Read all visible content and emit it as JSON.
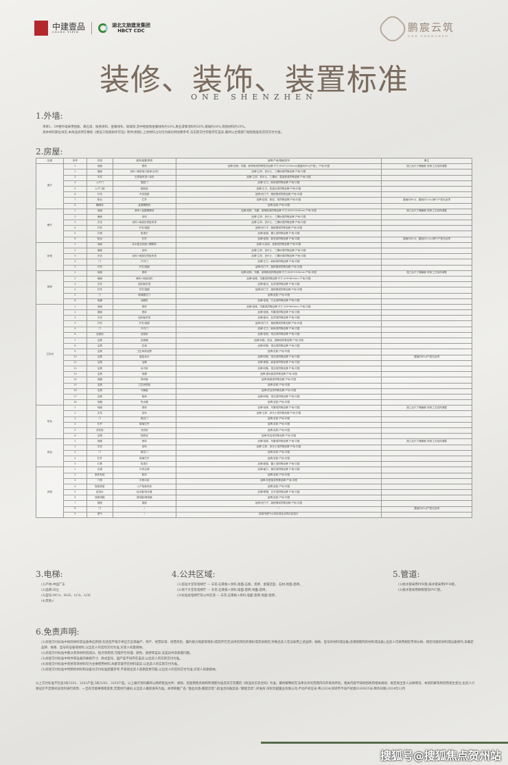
{
  "header": {
    "logo_left_1": "中建壹品",
    "logo_left_1_en": "CSCEC YIPIN",
    "logo_left_2": "湖北文旅建发集团",
    "logo_left_2_en": "HBCT CDC",
    "logo_right": "鹏宸云筑",
    "logo_right_en": "ONE SHENZHEN",
    "title": "装修、装饰、装置标准",
    "subtitle": "ONE SHENZHEN"
  },
  "s1": {
    "heading": "1.外墙:",
    "lines": [
      "项目1、5#楼外墙采用铝板、真石漆、质感涂料、金属线条、玻璃等,其中铝板和金属线条约10%,真石漆和涂料约50%,玻璃约30%,其他材料约10%。",
      "具体材料部位详见:本商品房所在楼栋《建设工程规划许可证》附件(附图),上述材料占比均为按比例估算参考,与实际交付可能存在差异,最终以主管部门规划批复及实际交付为准。"
    ]
  },
  "s2": {
    "heading": "2.房屋:",
    "columns": [
      "区域",
      "序号",
      "内容",
      "装饰/装置/类别",
      "品牌/产地/规格/型号",
      "备注"
    ],
    "rows": [
      [
        "客厅",
        "1",
        "地面",
        "瓷砖",
        "品牌:冠珠、东鹏、新明珠或同等档次品牌  尺寸:800*1200mm(建面约89㎡户型)、产地:中国",
        "施工后尺寸略偏差 现场工艺结构调整"
      ],
      [
        "客厅",
        "2",
        "墙面",
        "涂料+局部收口装饰(石材)",
        "品牌:立邦、多乐士、三棵树或同等品牌  产地:中国",
        ""
      ],
      [
        "客厅",
        "3",
        "天花",
        "石膏板吊顶+涂料",
        "品牌:立邦、多乐士、三棵树、嘉宝莉或同等品牌  产地:中国",
        ""
      ],
      [
        "客厅",
        "4",
        "入户门",
        "智能门",
        "品牌:王力、盼盼或同等品牌  产地:中国",
        ""
      ],
      [
        "客厅",
        "5",
        "入户门锁",
        "智能锁",
        "品牌:王力、凯迪仕或同等品牌  产地:中国",
        ""
      ],
      [
        "客厅",
        "6",
        "开关",
        "开关插座",
        "品牌:西门子、施耐德或同等品牌  产地:中国",
        ""
      ],
      [
        "客厅",
        "7",
        "阳台",
        "栏杆",
        "品牌:定制、新亚、或同等品牌  产地:中国",
        "建面约89㎡、建面约114㎡两个户型无此项"
      ],
      [
        "客厅",
        "8",
        "踢脚线",
        "金属踢脚线",
        "品牌:定制  产地:中国",
        ""
      ],
      [
        "餐厅",
        "1",
        "地面",
        "瓷砖+金属踢脚线",
        "品牌:冠珠、东鹏、新明珠或同等品牌  尺寸:800*1200mm  产地:中国",
        "施工后尺寸略偏差 现场工艺结构调整"
      ],
      [
        "餐厅",
        "2",
        "墙面",
        "涂料",
        "品牌:立邦、多乐士、三棵树或同等品牌  产地:中国",
        ""
      ],
      [
        "餐厅",
        "3",
        "天花",
        "涂料+局部石膏板吊顶",
        "品牌:立邦、多乐士、三棵树或同等品牌  产地:中国",
        ""
      ],
      [
        "餐厅",
        "4",
        "开关",
        "开关/插座",
        "品牌:西门子、施耐德或同等品牌  产地:中国",
        ""
      ],
      [
        "餐厅",
        "5",
        "灯具",
        "吸顶灯",
        "品牌:欧普、雷士或同等品牌  产地:中国",
        ""
      ],
      [
        "餐厅",
        "6",
        "阳台",
        "栏杆",
        "品牌:定制、新亚或同等品牌  产地:中国",
        "建面约89㎡、建面约114㎡两个户型无此项"
      ],
      [
        "卧室",
        "1",
        "地面",
        "实木复合地板+踢脚线",
        "品牌:大自然、圣象或同等品牌  产地:中国",
        ""
      ],
      [
        "卧室",
        "2",
        "墙面",
        "涂料",
        "品牌:立邦、多乐士、三棵树或同等品牌  产地:中国",
        ""
      ],
      [
        "卧室",
        "3",
        "天花",
        "涂料+局部石膏板吊顶",
        "品牌:立邦、多乐士、三棵树或同等品牌  产地:中国",
        ""
      ],
      [
        "卧室",
        "4",
        "门",
        "户内门",
        "品牌:王力、盼盼或同等品牌  产地:中国",
        ""
      ],
      [
        "卧室",
        "5",
        "开关",
        "开关/插座",
        "品牌:西门子、施耐德或同等品牌  产地:中国",
        ""
      ],
      [
        "厨房",
        "1",
        "地面",
        "瓷砖",
        "品牌:冠珠、东鹏、新明珠或同等品牌  尺寸:600*1200mm  产地:中国",
        "施工后尺寸略偏差 现场工艺结构调整"
      ],
      [
        "厨房",
        "2",
        "墙面",
        "瓷砖+局部涂料",
        "品牌:冠珠、东鹏或同等品牌  尺寸:400*800mm  产地:中国",
        ""
      ],
      [
        "厨房",
        "3",
        "天花",
        "铝扣板吊顶",
        "品牌:欧派、友邦或同等品牌  产地:中国",
        ""
      ],
      [
        "厨房",
        "4",
        "开关",
        "开关/插座",
        "品牌:西门子、施耐德或同等品牌  产地:中国",
        ""
      ],
      [
        "厨房",
        "5",
        "门",
        "玻璃推拉门",
        "品牌:定制  产地:中国",
        ""
      ],
      [
        "厨房",
        "6",
        "电器",
        "油烟机",
        "品牌:老板、方太或同等品牌  产地:中国",
        ""
      ],
      [
        "卫生间",
        "1",
        "地面",
        "瓷砖",
        "品牌:冠珠、东鹏或同等品牌  尺寸:300*600mm  产地:中国",
        ""
      ],
      [
        "卫生间",
        "2",
        "墙面",
        "瓷砖",
        "品牌:冠珠、东鹏或同等品牌  产地:中国",
        ""
      ],
      [
        "卫生间",
        "3",
        "天花",
        "铝扣板吊顶",
        "品牌:欧派、友邦或同等品牌  产地:中国",
        ""
      ],
      [
        "卫生间",
        "4",
        "开关",
        "开关/插座",
        "品牌:西门子、施耐德或同等品牌  产地:中国",
        ""
      ],
      [
        "卫生间",
        "5",
        "门",
        "户内门",
        "品牌:王力、盼盼或同等品牌  产地:中国",
        ""
      ],
      [
        "卫生间",
        "6",
        "浴室柜",
        "浴室柜",
        "品牌:定制、恒洁或同等品牌  产地:中国",
        ""
      ],
      [
        "卫生间",
        "7",
        "洁具",
        "坐便器",
        "品牌:科勒、恒洁、箭牌或同等品牌  产地:中国",
        ""
      ],
      [
        "卫生间",
        "8",
        "洁具",
        "花洒",
        "品牌:科勒、恒洁或同等品牌  产地:中国",
        ""
      ],
      [
        "卫生间",
        "9",
        "洁具",
        "卫生间淋浴屏",
        "品牌:定制  产地:中国",
        ""
      ],
      [
        "卫生间",
        "10",
        "洁具",
        "面盆龙头",
        "品牌:科勒、恒洁或同等品牌  产地:中国",
        "建面约89㎡户型无此项"
      ],
      [
        "卫生间",
        "11",
        "洁具",
        "浴霸",
        "品牌:奥普、欧普或同等品牌  产地:中国",
        ""
      ],
      [
        "卫生间",
        "12",
        "洁具",
        "毛巾架",
        "品牌:科勒、恒洁或同等品牌  产地:中国",
        ""
      ],
      [
        "卫生间",
        "13",
        "洁具",
        "地漏",
        "品牌:潜水艇或同等品牌  产地:中国",
        ""
      ],
      [
        "卫生间",
        "14",
        "电器",
        "排风扇",
        "品牌:奥普或同等品牌  产地:中国",
        ""
      ],
      [
        "卫生间",
        "15",
        "洁具",
        "卫生间镜柜",
        "品牌:定制  产地:中国",
        ""
      ],
      [
        "卫生间",
        "16",
        "洁具",
        "马桶盖",
        "品牌:恒洁或同等品牌  产地:中国",
        ""
      ],
      [
        "卫生间",
        "17",
        "洁具",
        "角阀",
        "品牌:科勒、恒洁或同等品牌  产地:中国",
        ""
      ],
      [
        "卫生间",
        "18",
        "电器",
        "热水器",
        "品牌:定制  产地:中国",
        ""
      ],
      [
        "阳台",
        "1",
        "地面",
        "瓷砖",
        "品牌:冠珠、东鹏或同等品牌  产地:中国",
        "施工后尺寸略偏差 现场工艺结构调整"
      ],
      [
        "阳台",
        "2",
        "天花",
        "涂料",
        "品牌:立邦、多乐士或同等品牌  产地:中国",
        ""
      ],
      [
        "阳台",
        "3",
        "门",
        "推拉门",
        "品牌:定制  产地:中国",
        ""
      ],
      [
        "阳台",
        "4",
        "栏杆",
        "玻璃栏杆",
        "品牌:定制  产地:中国",
        ""
      ],
      [
        "阳台",
        "5",
        "洗衣柜",
        "洗衣柜",
        "品牌:定制  产地:中国",
        ""
      ],
      [
        "阳台",
        "6",
        "洁具",
        "拖把池",
        "品牌:恒洁或同等品牌  产地:中国",
        ""
      ],
      [
        "阳台",
        "1",
        "地面",
        "瓷砖",
        "品牌:冠珠、东鹏或同等品牌  产地:中国",
        "施工后尺寸略偏差 现场工艺结构调整"
      ],
      [
        "阳台",
        "2",
        "天花",
        "涂料",
        "品牌:立邦、多乐士或同等品牌  产地:中国",
        ""
      ],
      [
        "阳台",
        "3",
        "门",
        "推拉门",
        "品牌:定制  产地:中国",
        ""
      ],
      [
        "阳台",
        "4",
        "栏杆",
        "玻璃栏杆",
        "品牌:定制  产地:中国",
        ""
      ],
      [
        "阳台",
        "5",
        "灯具",
        "吸顶灯",
        "品牌:欧普、雷士或同等品牌  产地:中国",
        ""
      ],
      [
        "其他",
        "1",
        "空调",
        "中央空调",
        "品牌:格力、美的或同等品牌  产地:中国",
        ""
      ],
      [
        "其他",
        "2",
        "新风系统",
        "新风",
        "品牌:定制  产地:中国",
        ""
      ],
      [
        "其他",
        "3",
        "门禁",
        "可视对讲",
        "品牌:安居宝或同等品牌  产地:中国",
        ""
      ],
      [
        "其他",
        "4",
        "智能家居",
        "入户智能系统",
        "品牌:定制  产地:中国",
        ""
      ],
      [
        "其他",
        "5",
        "给排水",
        "给水管/排水管",
        "品牌:联塑、日丰或同等品牌  产地:中国",
        ""
      ],
      [
        "其他",
        "6",
        "强弱电箱",
        "强电箱/弱电箱",
        "品牌:定制  产地:中国",
        ""
      ],
      [
        "其他",
        "7",
        "插座",
        "插座",
        "品牌:西门子、施耐德或同等品牌  产地:中国",
        ""
      ],
      [
        "其他",
        "8",
        "门",
        "/",
        "/",
        "建面约89㎡户型无此项"
      ],
      [
        "其他",
        "9",
        "燃气",
        "/",
        "按城市燃气公司标准及合同约定执行",
        ""
      ]
    ]
  },
  "s3": {
    "heading": "3.电梯:",
    "lines": [
      "(1)产地:中国广东",
      "(2)品牌:日立",
      "(3)型号:MCA、HGE、LCA、LGE",
      "(4)其他:/"
    ]
  },
  "s4": {
    "heading": "4.公共区域:",
    "lines": [
      "(1)首层大堂及电梯厅 — 天花:石膏板+涂料;墙面:石板、瓷砖、金属造型、石材;地面:瓷砖。",
      "(2)地下大堂及电梯厅 — 天花:石膏板+涂料;墙面:瓷砖;地面:瓷砖。",
      "(3)标准层电梯厅及公共走道 — 天花:石膏板+涂料;墙面:瓷砖;地面:瓷砖。"
    ]
  },
  "s5": {
    "heading": "5.管道:",
    "lines": [
      "(1)给水管采用PPR管;排水管采用PP-R管。",
      "(2)排水管采用铸铁管及PVC管。"
    ]
  },
  "s6": {
    "heading": "6.免责声明:",
    "lines": [
      "(1)房屋交付标准中如因材料或设备供应原因(包括但不限于供应方出现破产、停产、经营异常、经营风险、履约能力瑕疵等情形)或其存在无法供货风险的情形或其他原因,导致出卖人无法采用上述品牌、规格、型号的材料或设备(含保修期内的材料或设备),出卖人可采用相近市场价格、相近功能的材料或设备替代;未确定品牌、规格、型号的设备或材料,以出卖人的实际交付为准,买受人同意接纳。",
      "(2)房屋交付标准中部分装饰材料因成分、批次等原因,可能存在纹理、颜色、质感等差异,该差异并非质量问题。",
      "(3)房屋交付标准中构件或设备的规格尺寸、款式型号、国产型不同存在差异,以出卖人的实际交付为准。",
      "(4)房屋交付标准中装修装饰材料仅为主要使用材料,局部可能存在材料差异,以出卖人的实际交付为准。",
      "(5)房屋交付标准中列明的材料和设备为交付标准配置参考,不排除出卖人后期变更可能,以出卖人的实际交付为准,买受人同意接纳。"
    ],
    "footer": "以上交付标准不包含3栋3202、3203户型,5栋3202、3203户型。以上展示资料最终以政府批准文件、规划、房屋销售条款和所测图为准及双方签署的《商品房买卖合同》为准。最终解释权在法律允许的范围内归开发商所有。相关内容不排除因政府相关规划、规定发出变人分摊情况、本组的解等原因而发生变化;出卖人只保证在不定期对该资料进行修改、一旦有可能事情或变更,无需另行通知,以出卖人最新发布为准。本项目推广名:“壹品文旅·鹏宸云筑”;批准合同备案名:“鹏宸云筑”;开发商:深圳华越置业有限公司;不动产权证号:粤(2024)深圳市不动产权第0160925号;制作日期:2024年12月"
  },
  "watermark": "搜狐号@搜狐焦点贺州站",
  "colors": {
    "title": "#7a6b5f",
    "seal": "#b3282d",
    "background": "#ecebe7"
  }
}
